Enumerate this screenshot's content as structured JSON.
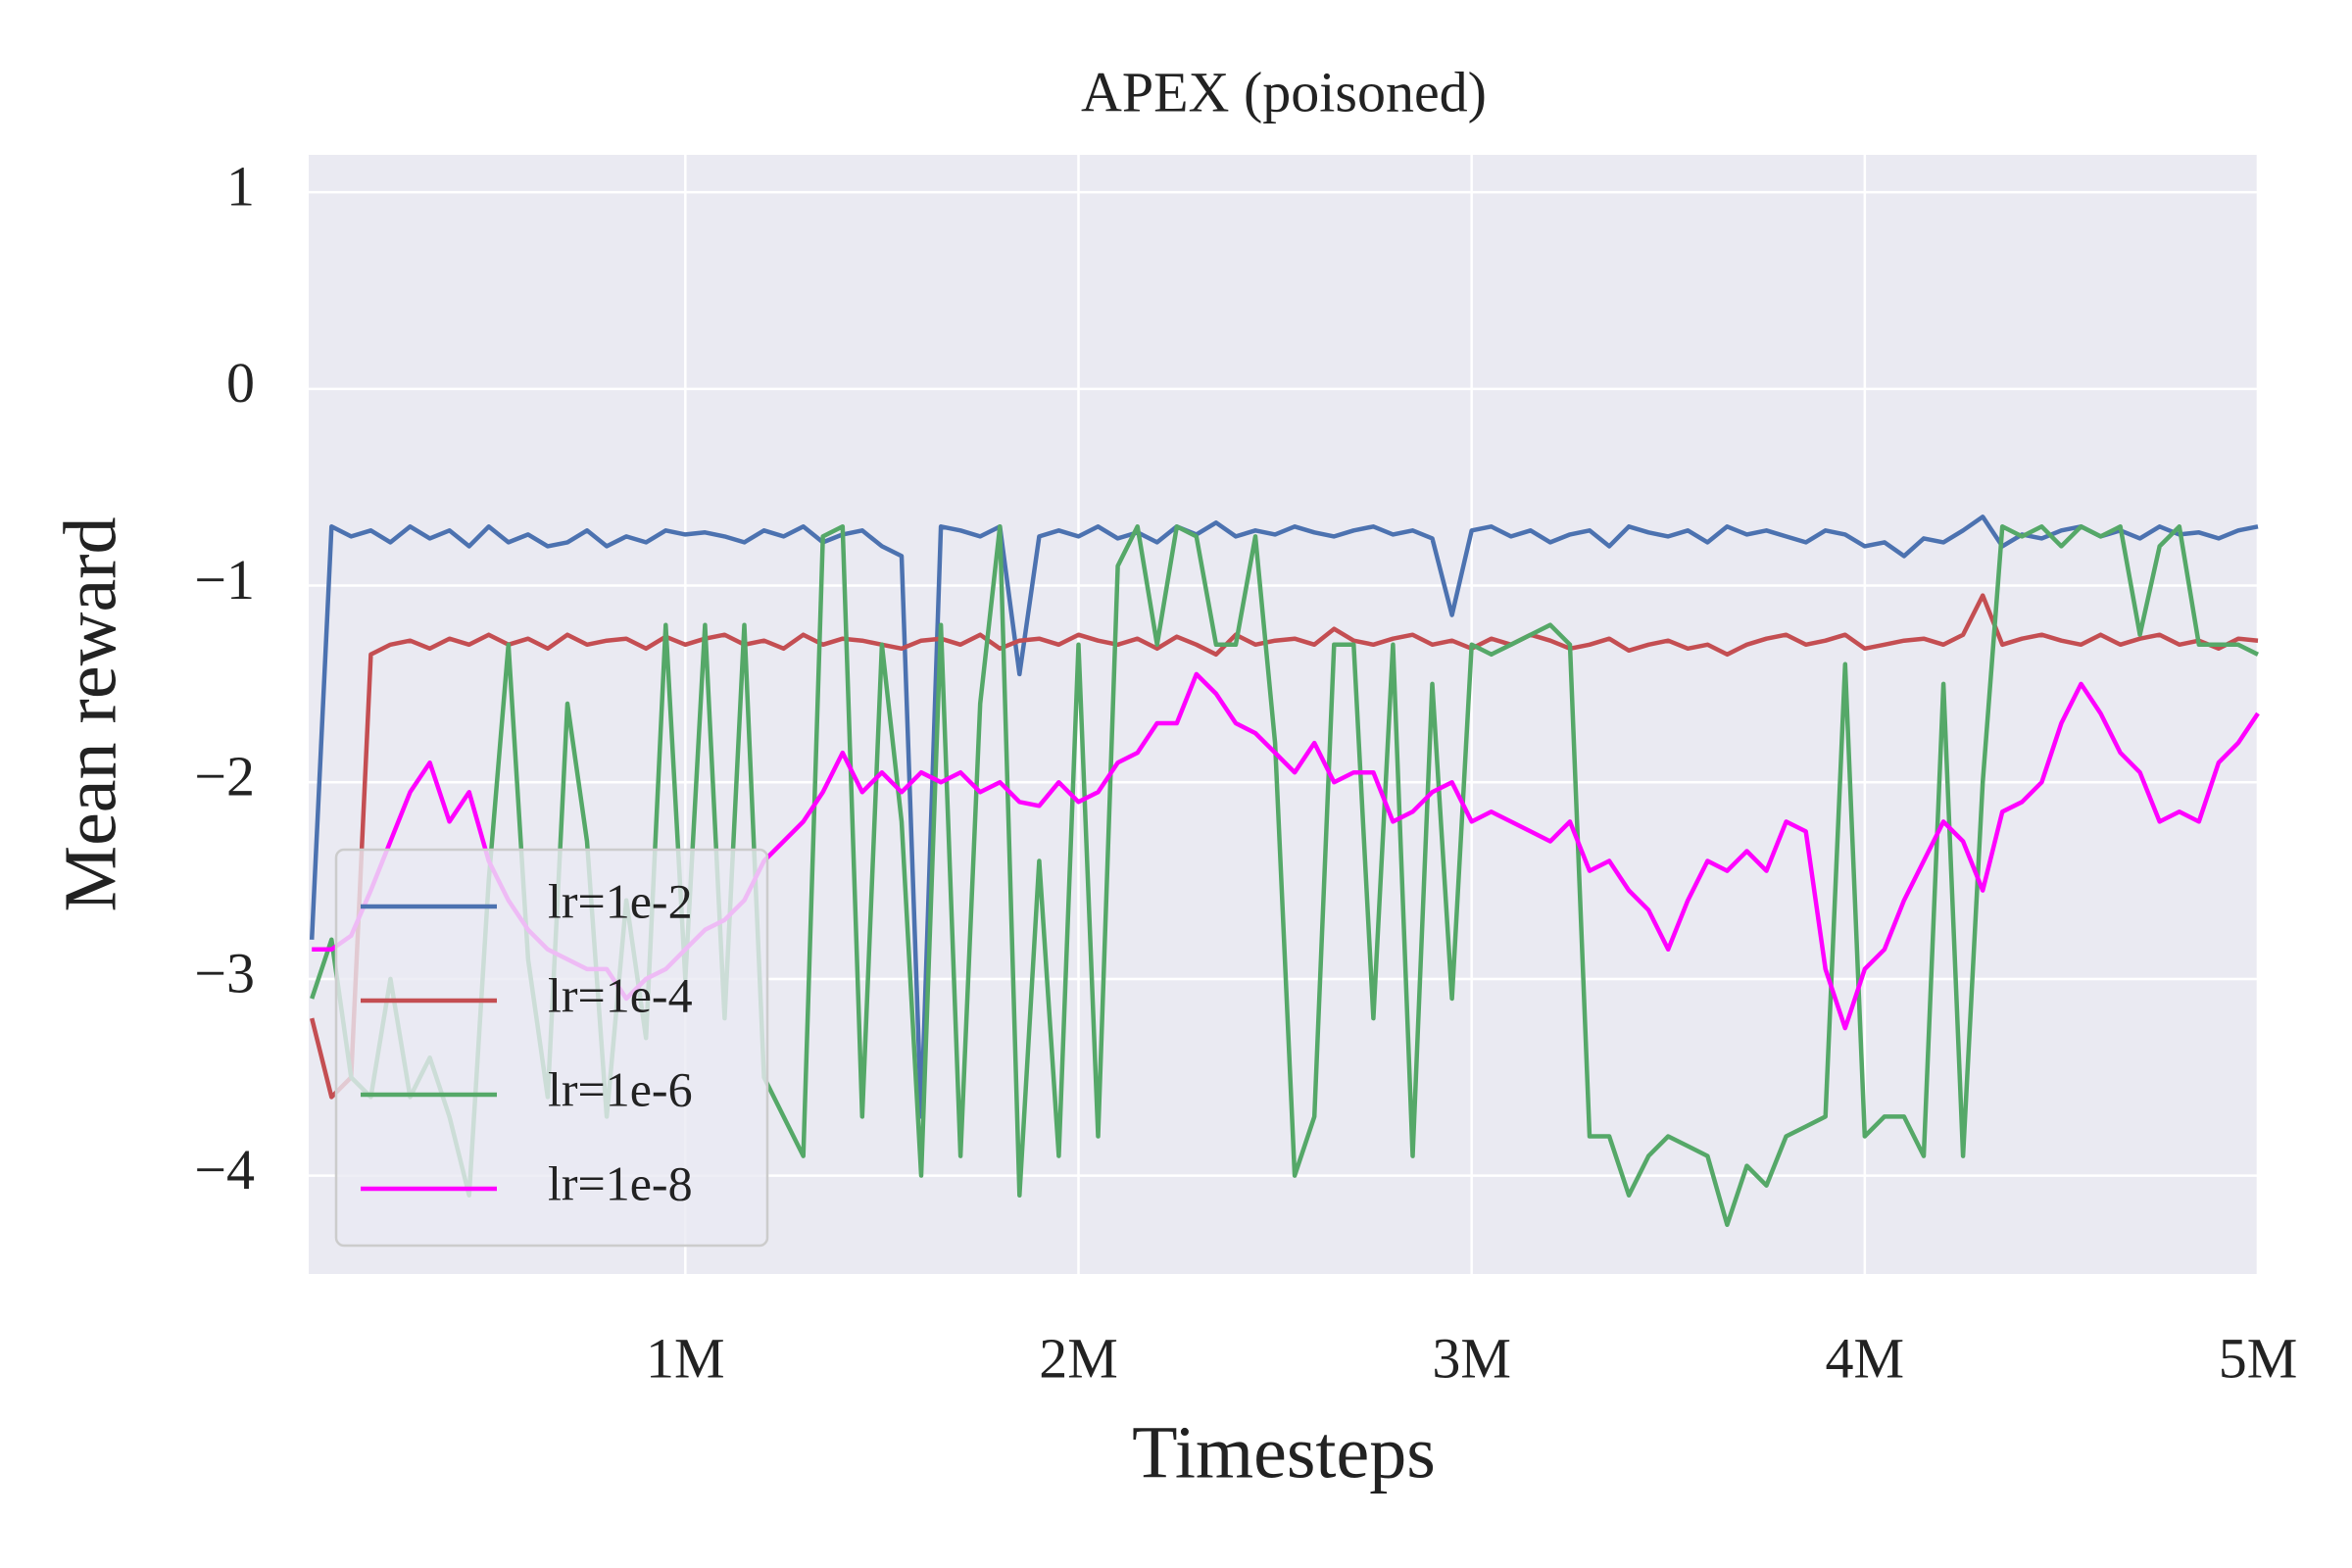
{
  "chart_data": {
    "type": "line",
    "title": "APEX (poisoned)",
    "xlabel": "Timesteps",
    "ylabel": "Mean reward",
    "xlim": [
      42000,
      5000000
    ],
    "xticks": [
      {
        "value": 1000000,
        "label": "1M"
      },
      {
        "value": 2000000,
        "label": "2M"
      },
      {
        "value": 3000000,
        "label": "3M"
      },
      {
        "value": 4000000,
        "label": "4M"
      },
      {
        "value": 5000000,
        "label": "5M"
      }
    ],
    "ylim": [
      -4.5,
      1.19
    ],
    "yticks": [
      {
        "value": -4,
        "label": "−4"
      },
      {
        "value": -3,
        "label": "−3"
      },
      {
        "value": -2,
        "label": "−2"
      },
      {
        "value": -1,
        "label": "−1"
      },
      0,
      1
    ],
    "grid": true,
    "legend": "lower left",
    "x": [
      50000,
      100000,
      150000,
      200000,
      250000,
      300000,
      350000,
      400000,
      450000,
      500000,
      550000,
      600000,
      650000,
      700000,
      750000,
      800000,
      850000,
      900000,
      950000,
      1000000,
      1050000,
      1100000,
      1150000,
      1200000,
      1250000,
      1300000,
      1350000,
      1400000,
      1450000,
      1500000,
      1550000,
      1600000,
      1650000,
      1700000,
      1750000,
      1800000,
      1850000,
      1900000,
      1950000,
      2000000,
      2050000,
      2100000,
      2150000,
      2200000,
      2250000,
      2300000,
      2350000,
      2400000,
      2450000,
      2500000,
      2550000,
      2600000,
      2650000,
      2700000,
      2750000,
      2800000,
      2850000,
      2900000,
      2950000,
      3000000,
      3050000,
      3100000,
      3150000,
      3200000,
      3250000,
      3300000,
      3350000,
      3400000,
      3450000,
      3500000,
      3550000,
      3600000,
      3650000,
      3700000,
      3750000,
      3800000,
      3850000,
      3900000,
      3950000,
      4000000,
      4050000,
      4100000,
      4150000,
      4200000,
      4250000,
      4300000,
      4350000,
      4400000,
      4450000,
      4500000,
      4550000,
      4600000,
      4650000,
      4700000,
      4750000,
      4800000,
      4850000,
      4900000,
      4950000,
      5000000
    ],
    "series": [
      {
        "name": "lr=1e-2",
        "color": "#4c72b0",
        "values": [
          -2.8,
          -0.7,
          -0.75,
          -0.72,
          -0.78,
          -0.7,
          -0.76,
          -0.72,
          -0.8,
          -0.7,
          -0.78,
          -0.74,
          -0.8,
          -0.78,
          -0.72,
          -0.8,
          -0.75,
          -0.78,
          -0.72,
          -0.74,
          -0.73,
          -0.75,
          -0.78,
          -0.72,
          -0.75,
          -0.7,
          -0.78,
          -0.74,
          -0.72,
          -0.8,
          -0.85,
          -3.7,
          -0.7,
          -0.72,
          -0.75,
          -0.7,
          -1.45,
          -0.75,
          -0.72,
          -0.75,
          -0.7,
          -0.76,
          -0.73,
          -0.78,
          -0.7,
          -0.74,
          -0.68,
          -0.75,
          -0.72,
          -0.74,
          -0.7,
          -0.73,
          -0.75,
          -0.72,
          -0.7,
          -0.74,
          -0.72,
          -0.76,
          -1.15,
          -0.72,
          -0.7,
          -0.75,
          -0.72,
          -0.78,
          -0.74,
          -0.72,
          -0.8,
          -0.7,
          -0.73,
          -0.75,
          -0.72,
          -0.78,
          -0.7,
          -0.74,
          -0.72,
          -0.75,
          -0.78,
          -0.72,
          -0.74,
          -0.8,
          -0.78,
          -0.85,
          -0.76,
          -0.78,
          -0.72,
          -0.65,
          -0.8,
          -0.74,
          -0.76,
          -0.72,
          -0.7,
          -0.75,
          -0.72,
          -0.76,
          -0.7,
          -0.74,
          -0.73,
          -0.76,
          -0.72,
          -0.7
        ]
      },
      {
        "name": "lr=1e-4",
        "color": "#c44e52",
        "values": [
          -3.2,
          -3.6,
          -3.5,
          -1.35,
          -1.3,
          -1.28,
          -1.32,
          -1.27,
          -1.3,
          -1.25,
          -1.3,
          -1.27,
          -1.32,
          -1.25,
          -1.3,
          -1.28,
          -1.27,
          -1.32,
          -1.26,
          -1.3,
          -1.27,
          -1.25,
          -1.3,
          -1.28,
          -1.32,
          -1.25,
          -1.3,
          -1.27,
          -1.28,
          -1.3,
          -1.32,
          -1.28,
          -1.27,
          -1.3,
          -1.25,
          -1.32,
          -1.28,
          -1.27,
          -1.3,
          -1.25,
          -1.28,
          -1.3,
          -1.27,
          -1.32,
          -1.26,
          -1.3,
          -1.35,
          -1.25,
          -1.3,
          -1.28,
          -1.27,
          -1.3,
          -1.22,
          -1.28,
          -1.3,
          -1.27,
          -1.25,
          -1.3,
          -1.28,
          -1.32,
          -1.27,
          -1.3,
          -1.25,
          -1.28,
          -1.32,
          -1.3,
          -1.27,
          -1.33,
          -1.3,
          -1.28,
          -1.32,
          -1.3,
          -1.35,
          -1.3,
          -1.27,
          -1.25,
          -1.3,
          -1.28,
          -1.25,
          -1.32,
          -1.3,
          -1.28,
          -1.27,
          -1.3,
          -1.25,
          -1.05,
          -1.3,
          -1.27,
          -1.25,
          -1.28,
          -1.3,
          -1.25,
          -1.3,
          -1.27,
          -1.25,
          -1.3,
          -1.28,
          -1.32,
          -1.27,
          -1.28
        ]
      },
      {
        "name": "lr=1e-6",
        "color": "#55a868",
        "values": [
          -3.1,
          -2.8,
          -3.5,
          -3.6,
          -3.0,
          -3.6,
          -3.4,
          -3.7,
          -4.1,
          -2.5,
          -1.3,
          -2.9,
          -3.6,
          -1.6,
          -2.3,
          -3.7,
          -2.6,
          -3.3,
          -1.2,
          -3.0,
          -1.2,
          -3.2,
          -1.2,
          -3.5,
          -3.7,
          -3.9,
          -0.75,
          -0.7,
          -3.7,
          -1.3,
          -2.2,
          -4.0,
          -1.2,
          -3.9,
          -1.6,
          -0.7,
          -4.1,
          -2.4,
          -3.9,
          -1.3,
          -3.8,
          -0.9,
          -0.7,
          -1.3,
          -0.7,
          -0.75,
          -1.3,
          -1.3,
          -0.75,
          -1.8,
          -4.0,
          -3.7,
          -1.3,
          -1.3,
          -3.2,
          -1.3,
          -3.9,
          -1.5,
          -3.1,
          -1.3,
          -1.35,
          -1.3,
          -1.25,
          -1.2,
          -1.3,
          -3.8,
          -3.8,
          -4.1,
          -3.9,
          -3.8,
          -3.85,
          -3.9,
          -4.25,
          -3.95,
          -4.05,
          -3.8,
          -3.75,
          -3.7,
          -1.4,
          -3.8,
          -3.7,
          -3.7,
          -3.9,
          -1.5,
          -3.9,
          -2.0,
          -0.7,
          -0.75,
          -0.7,
          -0.8,
          -0.7,
          -0.75,
          -0.7,
          -1.25,
          -0.8,
          -0.7,
          -1.3,
          -1.3,
          -1.3,
          -1.35
        ]
      },
      {
        "name": "lr=1e-8",
        "color": "#ff00ff",
        "values": [
          -2.85,
          -2.85,
          -2.78,
          -2.55,
          -2.3,
          -2.05,
          -1.9,
          -2.2,
          -2.05,
          -2.4,
          -2.6,
          -2.75,
          -2.85,
          -2.9,
          -2.95,
          -2.95,
          -3.1,
          -3.0,
          -2.95,
          -2.85,
          -2.75,
          -2.7,
          -2.6,
          -2.4,
          -2.3,
          -2.2,
          -2.05,
          -1.85,
          -2.05,
          -1.95,
          -2.05,
          -1.95,
          -2.0,
          -1.95,
          -2.05,
          -2.0,
          -2.1,
          -2.12,
          -2.0,
          -2.1,
          -2.05,
          -1.9,
          -1.85,
          -1.7,
          -1.7,
          -1.45,
          -1.55,
          -1.7,
          -1.75,
          -1.85,
          -1.95,
          -1.8,
          -2.0,
          -1.95,
          -1.95,
          -2.2,
          -2.15,
          -2.05,
          -2.0,
          -2.2,
          -2.15,
          -2.2,
          -2.25,
          -2.3,
          -2.2,
          -2.45,
          -2.4,
          -2.55,
          -2.65,
          -2.85,
          -2.6,
          -2.4,
          -2.45,
          -2.35,
          -2.45,
          -2.2,
          -2.25,
          -2.95,
          -3.25,
          -2.95,
          -2.85,
          -2.6,
          -2.4,
          -2.2,
          -2.3,
          -2.55,
          -2.15,
          -2.1,
          -2.0,
          -1.7,
          -1.5,
          -1.65,
          -1.85,
          -1.95,
          -2.2,
          -2.15,
          -2.2,
          -1.9,
          -1.8,
          -1.65
        ]
      }
    ]
  }
}
